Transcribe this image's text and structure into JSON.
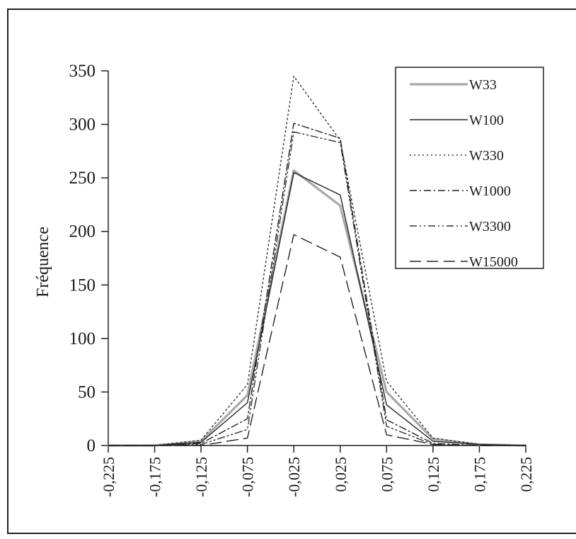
{
  "chart_data": {
    "type": "line",
    "title": "",
    "xlabel": "",
    "ylabel": "Fréquence",
    "x": [
      -0.225,
      -0.175,
      -0.125,
      -0.075,
      -0.025,
      0.025,
      0.075,
      0.125,
      0.175,
      0.225
    ],
    "x_tick_labels": [
      "-0,225",
      "-0,175",
      "-0,125",
      "-0,075",
      "-0,025",
      "0,025",
      "0,075",
      "0,125",
      "0,175",
      "0,225"
    ],
    "ylim": [
      0,
      350
    ],
    "y_ticks": [
      0,
      50,
      100,
      150,
      200,
      250,
      300,
      350
    ],
    "grid": false,
    "legend_position": "top-right",
    "series": [
      {
        "name": "W33",
        "color": "#a8a8a8",
        "style": "solid-thick",
        "points": [
          [
            -0.225,
            0
          ],
          [
            -0.175,
            0
          ],
          [
            -0.125,
            4
          ],
          [
            -0.075,
            47
          ],
          [
            -0.025,
            257
          ],
          [
            0.025,
            224
          ],
          [
            0.075,
            50
          ],
          [
            0.125,
            6
          ],
          [
            0.175,
            1
          ],
          [
            0.225,
            0
          ]
        ]
      },
      {
        "name": "W100",
        "color": "#222222",
        "style": "solid",
        "points": [
          [
            -0.225,
            0
          ],
          [
            -0.175,
            0
          ],
          [
            -0.125,
            3
          ],
          [
            -0.075,
            40
          ],
          [
            -0.025,
            255
          ],
          [
            0.025,
            234
          ],
          [
            0.075,
            38
          ],
          [
            0.125,
            4
          ],
          [
            0.175,
            1
          ],
          [
            0.225,
            0
          ]
        ]
      },
      {
        "name": "W330",
        "color": "#333333",
        "style": "dotted",
        "points": [
          [
            -0.225,
            0
          ],
          [
            -0.175,
            0
          ],
          [
            -0.125,
            5
          ],
          [
            -0.075,
            57
          ],
          [
            -0.025,
            345
          ],
          [
            0.025,
            285
          ],
          [
            0.075,
            60
          ],
          [
            0.125,
            7
          ],
          [
            0.175,
            1
          ],
          [
            0.225,
            0
          ]
        ]
      },
      {
        "name": "W1000",
        "color": "#222222",
        "style": "dashdot",
        "points": [
          [
            -0.225,
            0
          ],
          [
            -0.175,
            0
          ],
          [
            -0.125,
            2
          ],
          [
            -0.075,
            25
          ],
          [
            -0.025,
            301
          ],
          [
            0.025,
            287
          ],
          [
            0.075,
            24
          ],
          [
            0.125,
            2
          ],
          [
            0.175,
            0
          ],
          [
            0.225,
            0
          ]
        ]
      },
      {
        "name": "W3300",
        "color": "#333333",
        "style": "dashdotdot",
        "points": [
          [
            -0.225,
            0
          ],
          [
            -0.175,
            0
          ],
          [
            -0.125,
            1
          ],
          [
            -0.075,
            15
          ],
          [
            -0.025,
            293
          ],
          [
            0.025,
            283
          ],
          [
            0.075,
            18
          ],
          [
            0.125,
            1
          ],
          [
            0.175,
            0
          ],
          [
            0.225,
            0
          ]
        ]
      },
      {
        "name": "W15000",
        "color": "#222222",
        "style": "longdash",
        "points": [
          [
            -0.225,
            0
          ],
          [
            -0.175,
            0
          ],
          [
            -0.125,
            0
          ],
          [
            -0.075,
            7
          ],
          [
            -0.025,
            197
          ],
          [
            0.025,
            176
          ],
          [
            0.075,
            10
          ],
          [
            0.125,
            1
          ],
          [
            0.175,
            0
          ],
          [
            0.225,
            0
          ]
        ]
      }
    ]
  }
}
